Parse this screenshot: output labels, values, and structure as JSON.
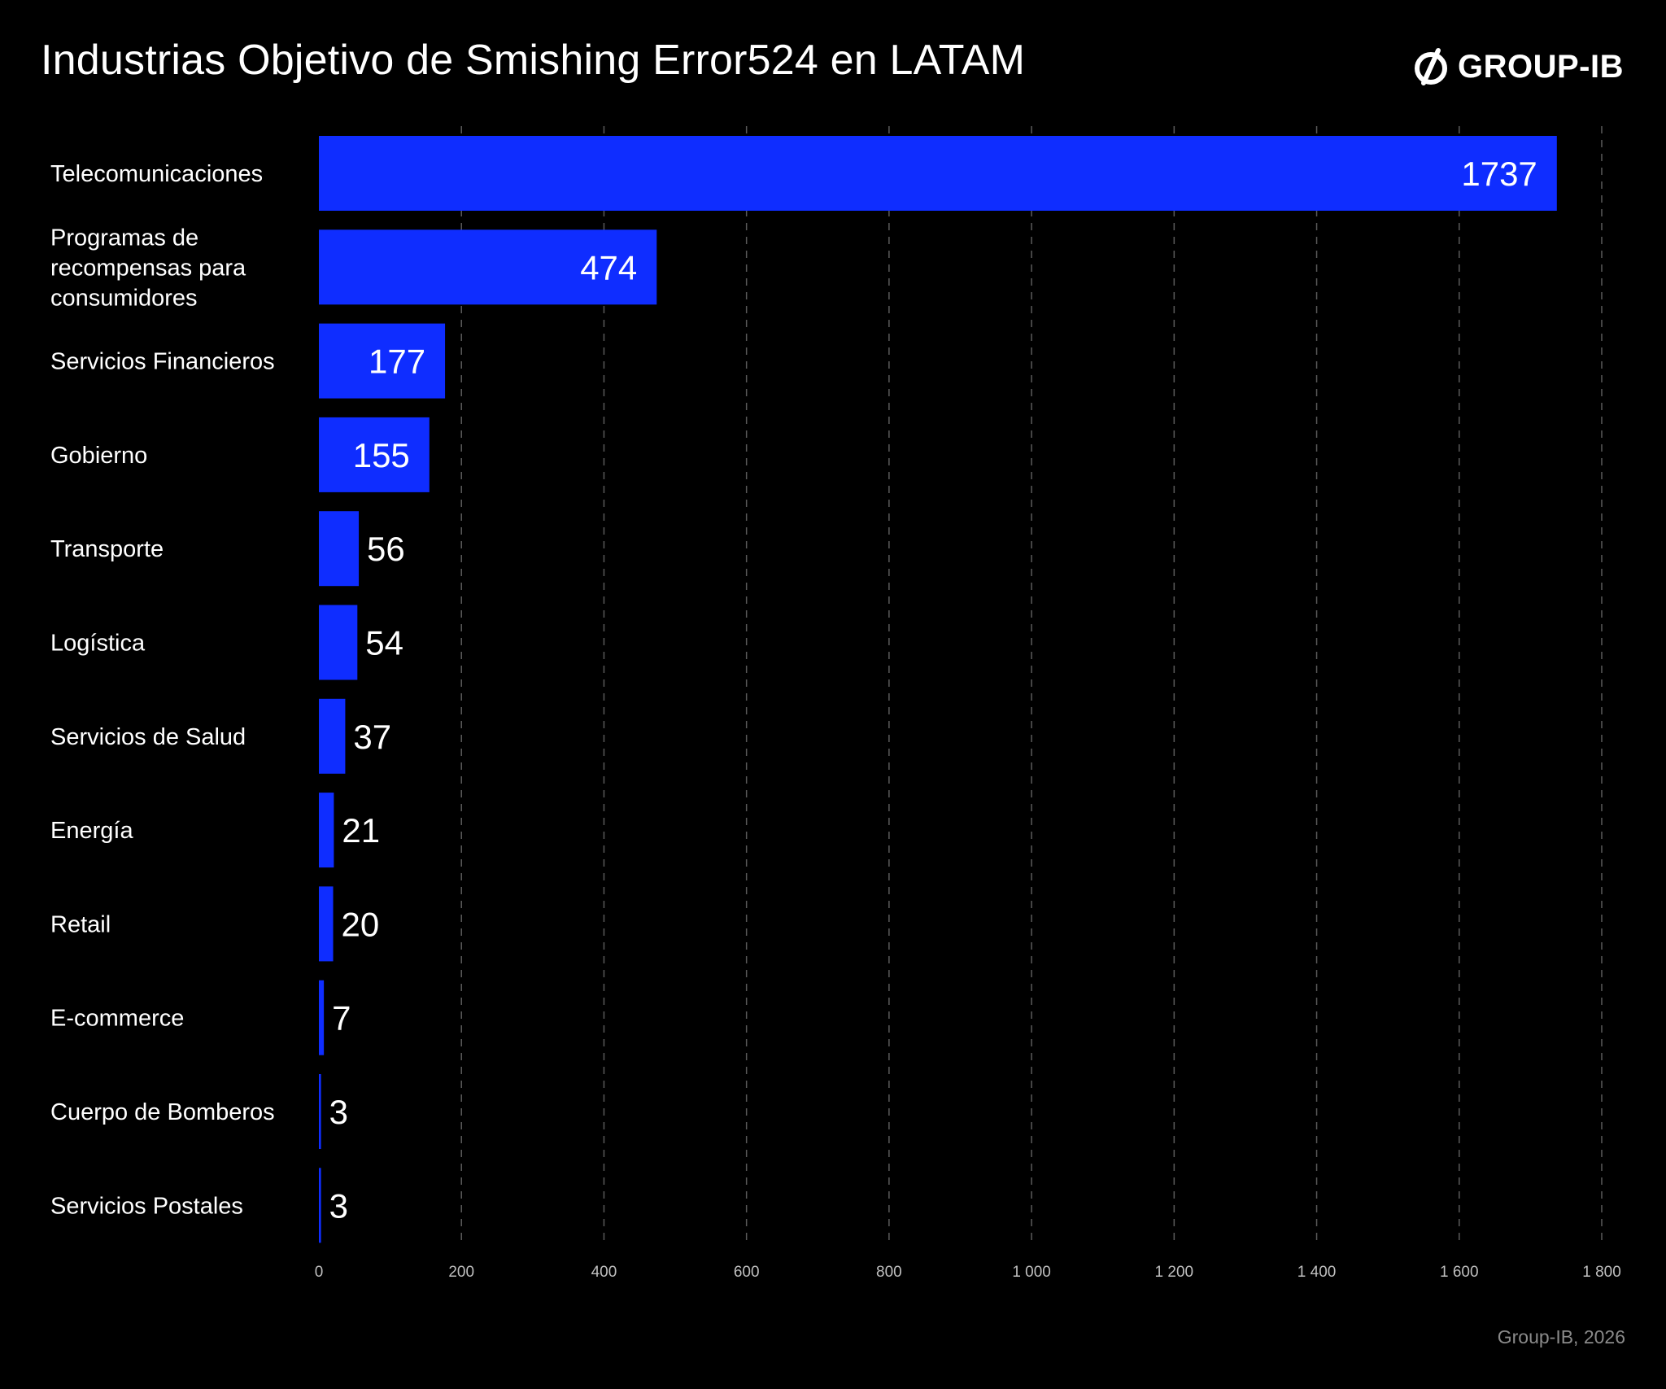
{
  "title": "Industrias Objetivo de Smishing Error524 en LATAM",
  "logo": {
    "text": "GROUP-IB",
    "icon": "group-ib-logo-icon"
  },
  "source": "Group-IB, 2026",
  "colors": {
    "background": "#000000",
    "bar": "#0f2dff",
    "grid": "#5a5a5a",
    "text": "#ffffff",
    "muted": "#8a8a8a"
  },
  "chart_data": {
    "type": "bar",
    "orientation": "horizontal",
    "categories": [
      [
        "Telecomunicaciones"
      ],
      [
        "Programas de",
        "recompensas para",
        "consumidores"
      ],
      [
        "Servicios Financieros"
      ],
      [
        "Gobierno"
      ],
      [
        "Transporte"
      ],
      [
        "Logística"
      ],
      [
        "Servicios de Salud"
      ],
      [
        "Energía"
      ],
      [
        "Retail"
      ],
      [
        "E-commerce"
      ],
      [
        "Cuerpo de Bomberos"
      ],
      [
        "Servicios Postales"
      ]
    ],
    "values": [
      1737,
      474,
      177,
      155,
      56,
      54,
      37,
      21,
      20,
      7,
      3,
      3
    ],
    "value_labels": [
      "1737",
      "474",
      "177",
      "155",
      "56",
      "54",
      "37",
      "21",
      "20",
      "7",
      "3",
      "3"
    ],
    "xlim": [
      0,
      1800
    ],
    "ticks": [
      0,
      200,
      400,
      600,
      800,
      1000,
      1200,
      1400,
      1600,
      1800
    ],
    "tick_labels": [
      "0",
      "200",
      "400",
      "600",
      "800",
      "1 000",
      "1 200",
      "1 400",
      "1 600",
      "1 800"
    ],
    "grid": "vertical-dashed",
    "xlabel": "",
    "ylabel": ""
  }
}
